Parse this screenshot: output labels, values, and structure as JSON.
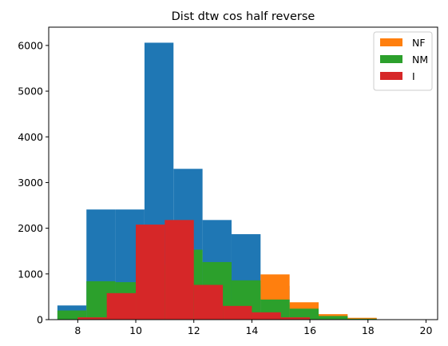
{
  "chart_data": {
    "type": "bar",
    "title": "Dist dtw cos half reverse",
    "xlabel": "",
    "ylabel": "",
    "xlim": [
      7.0,
      20.4
    ],
    "ylim": [
      0,
      6400
    ],
    "grid": false,
    "legend_position": "top-right",
    "x_ticks": [
      "8",
      "10",
      "12",
      "14",
      "16",
      "18",
      "20"
    ],
    "x_tick_values": [
      8,
      10,
      12,
      14,
      16,
      18,
      20
    ],
    "y_ticks": [
      "0",
      "1000",
      "2000",
      "3000",
      "4000",
      "5000",
      "6000"
    ],
    "y_tick_values": [
      0,
      1000,
      2000,
      3000,
      4000,
      5000,
      6000
    ],
    "series": [
      {
        "color": "#1f77b4",
        "bins": [
          {
            "x0": 7.3,
            "x1": 8.3,
            "value": 310
          },
          {
            "x0": 8.3,
            "x1": 9.3,
            "value": 2410
          },
          {
            "x0": 9.3,
            "x1": 10.3,
            "value": 2410
          },
          {
            "x0": 10.3,
            "x1": 11.3,
            "value": 6060
          },
          {
            "x0": 11.3,
            "x1": 12.3,
            "value": 3300
          },
          {
            "x0": 12.3,
            "x1": 13.3,
            "value": 2180
          },
          {
            "x0": 13.3,
            "x1": 14.3,
            "value": 1870
          },
          {
            "x0": 14.3,
            "x1": 15.3,
            "value": 740
          },
          {
            "x0": 15.3,
            "x1": 16.3,
            "value": 330
          },
          {
            "x0": 16.3,
            "x1": 17.3,
            "value": 60
          },
          {
            "x0": 17.3,
            "x1": 18.3,
            "value": 30
          }
        ]
      },
      {
        "name": "NF",
        "color": "#ff7f0e",
        "bins": [
          {
            "x0": 14.3,
            "x1": 15.3,
            "value": 990
          },
          {
            "x0": 15.3,
            "x1": 16.3,
            "value": 380
          },
          {
            "x0": 16.3,
            "x1": 17.3,
            "value": 120
          },
          {
            "x0": 17.3,
            "x1": 18.3,
            "value": 40
          }
        ]
      },
      {
        "name": "NM",
        "color": "#2ca02c",
        "bins": [
          {
            "x0": 7.3,
            "x1": 8.3,
            "value": 200
          },
          {
            "x0": 8.3,
            "x1": 9.3,
            "value": 840
          },
          {
            "x0": 9.3,
            "x1": 10.3,
            "value": 820
          },
          {
            "x0": 10.3,
            "x1": 11.3,
            "value": 1200
          },
          {
            "x0": 11.3,
            "x1": 12.3,
            "value": 1530
          },
          {
            "x0": 12.3,
            "x1": 13.3,
            "value": 1260
          },
          {
            "x0": 13.3,
            "x1": 14.3,
            "value": 860
          },
          {
            "x0": 14.3,
            "x1": 15.3,
            "value": 440
          },
          {
            "x0": 15.3,
            "x1": 16.3,
            "value": 240
          },
          {
            "x0": 16.3,
            "x1": 17.3,
            "value": 80
          },
          {
            "x0": 17.3,
            "x1": 18.3,
            "value": 20
          }
        ]
      },
      {
        "name": "I",
        "color": "#d62728",
        "bins": [
          {
            "x0": 8.0,
            "x1": 9.0,
            "value": 50
          },
          {
            "x0": 9.0,
            "x1": 10.0,
            "value": 580
          },
          {
            "x0": 10.0,
            "x1": 11.0,
            "value": 2080
          },
          {
            "x0": 11.0,
            "x1": 12.0,
            "value": 2180
          },
          {
            "x0": 12.0,
            "x1": 13.0,
            "value": 760
          },
          {
            "x0": 13.0,
            "x1": 14.0,
            "value": 300
          },
          {
            "x0": 14.0,
            "x1": 15.0,
            "value": 160
          },
          {
            "x0": 15.0,
            "x1": 16.0,
            "value": 50
          }
        ]
      }
    ]
  }
}
